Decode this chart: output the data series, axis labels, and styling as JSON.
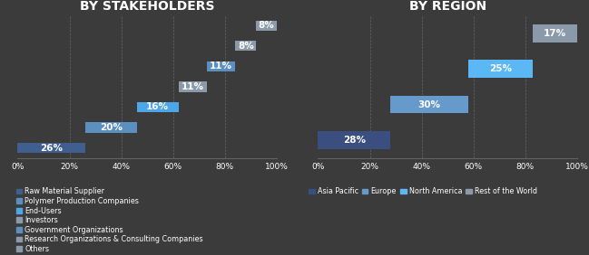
{
  "background_color": "#3b3b3b",
  "left_chart": {
    "title": "BY STAKEHOLDERS",
    "bars": [
      {
        "label": "Raw Material Supplier",
        "value": 26,
        "color": "#3f5f8f"
      },
      {
        "label": "Polymer Production Companies",
        "value": 20,
        "color": "#5a8fc0"
      },
      {
        "label": "End-Users",
        "value": 16,
        "color": "#4da6e8"
      },
      {
        "label": "Investors",
        "value": 11,
        "color": "#8a9aaa"
      },
      {
        "label": "Government Organizations",
        "value": 11,
        "color": "#5a8fc0"
      },
      {
        "label": "Research Organizations & Consulting Companies",
        "value": 8,
        "color": "#8a9aaa"
      },
      {
        "label": "Others",
        "value": 8,
        "color": "#8a9aaa"
      }
    ],
    "legend_labels": [
      "Raw Material Supplier",
      "Polymer Production Companies",
      "End-Users",
      "Investors",
      "Government Organizations",
      "Research Organizations & Consulting Companies",
      "Others"
    ]
  },
  "right_chart": {
    "title": "BY REGION",
    "bars": [
      {
        "label": "Asia Pacific",
        "value": 28,
        "color": "#3a4f7f"
      },
      {
        "label": "Europe",
        "value": 30,
        "color": "#6699cc"
      },
      {
        "label": "North America",
        "value": 25,
        "color": "#5bb8f5"
      },
      {
        "label": "Rest of the World",
        "value": 17,
        "color": "#8a9aaa"
      }
    ]
  },
  "text_color": "#ffffff",
  "grid_color": "#666666",
  "title_fontsize": 10,
  "label_fontsize": 7.5,
  "tick_fontsize": 6.5,
  "legend_fontsize": 5.8,
  "bar_height": 0.5
}
